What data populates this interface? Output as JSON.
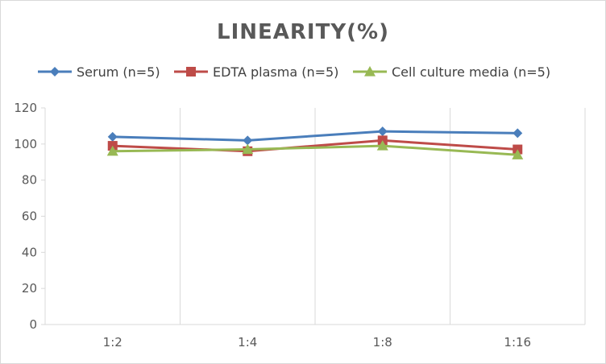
{
  "chart_data": {
    "type": "line",
    "title": "LINEARITY(%)",
    "categories": [
      "1:2",
      "1:4",
      "1:8",
      "1:16"
    ],
    "ylim": [
      0,
      120
    ],
    "yticks": [
      0,
      20,
      40,
      60,
      80,
      100,
      120
    ],
    "grid": "vertical",
    "legend": "top",
    "series": [
      {
        "name": "Serum (n=5)",
        "marker": "diamond",
        "color": "#4a7ebb",
        "values": [
          104,
          102,
          107,
          106
        ]
      },
      {
        "name": "EDTA plasma (n=5)",
        "marker": "square",
        "color": "#be4b48",
        "values": [
          99,
          96,
          102,
          97
        ]
      },
      {
        "name": "Cell culture media (n=5)",
        "marker": "triangle",
        "color": "#98b954",
        "values": [
          96,
          97,
          99,
          94
        ]
      }
    ]
  }
}
